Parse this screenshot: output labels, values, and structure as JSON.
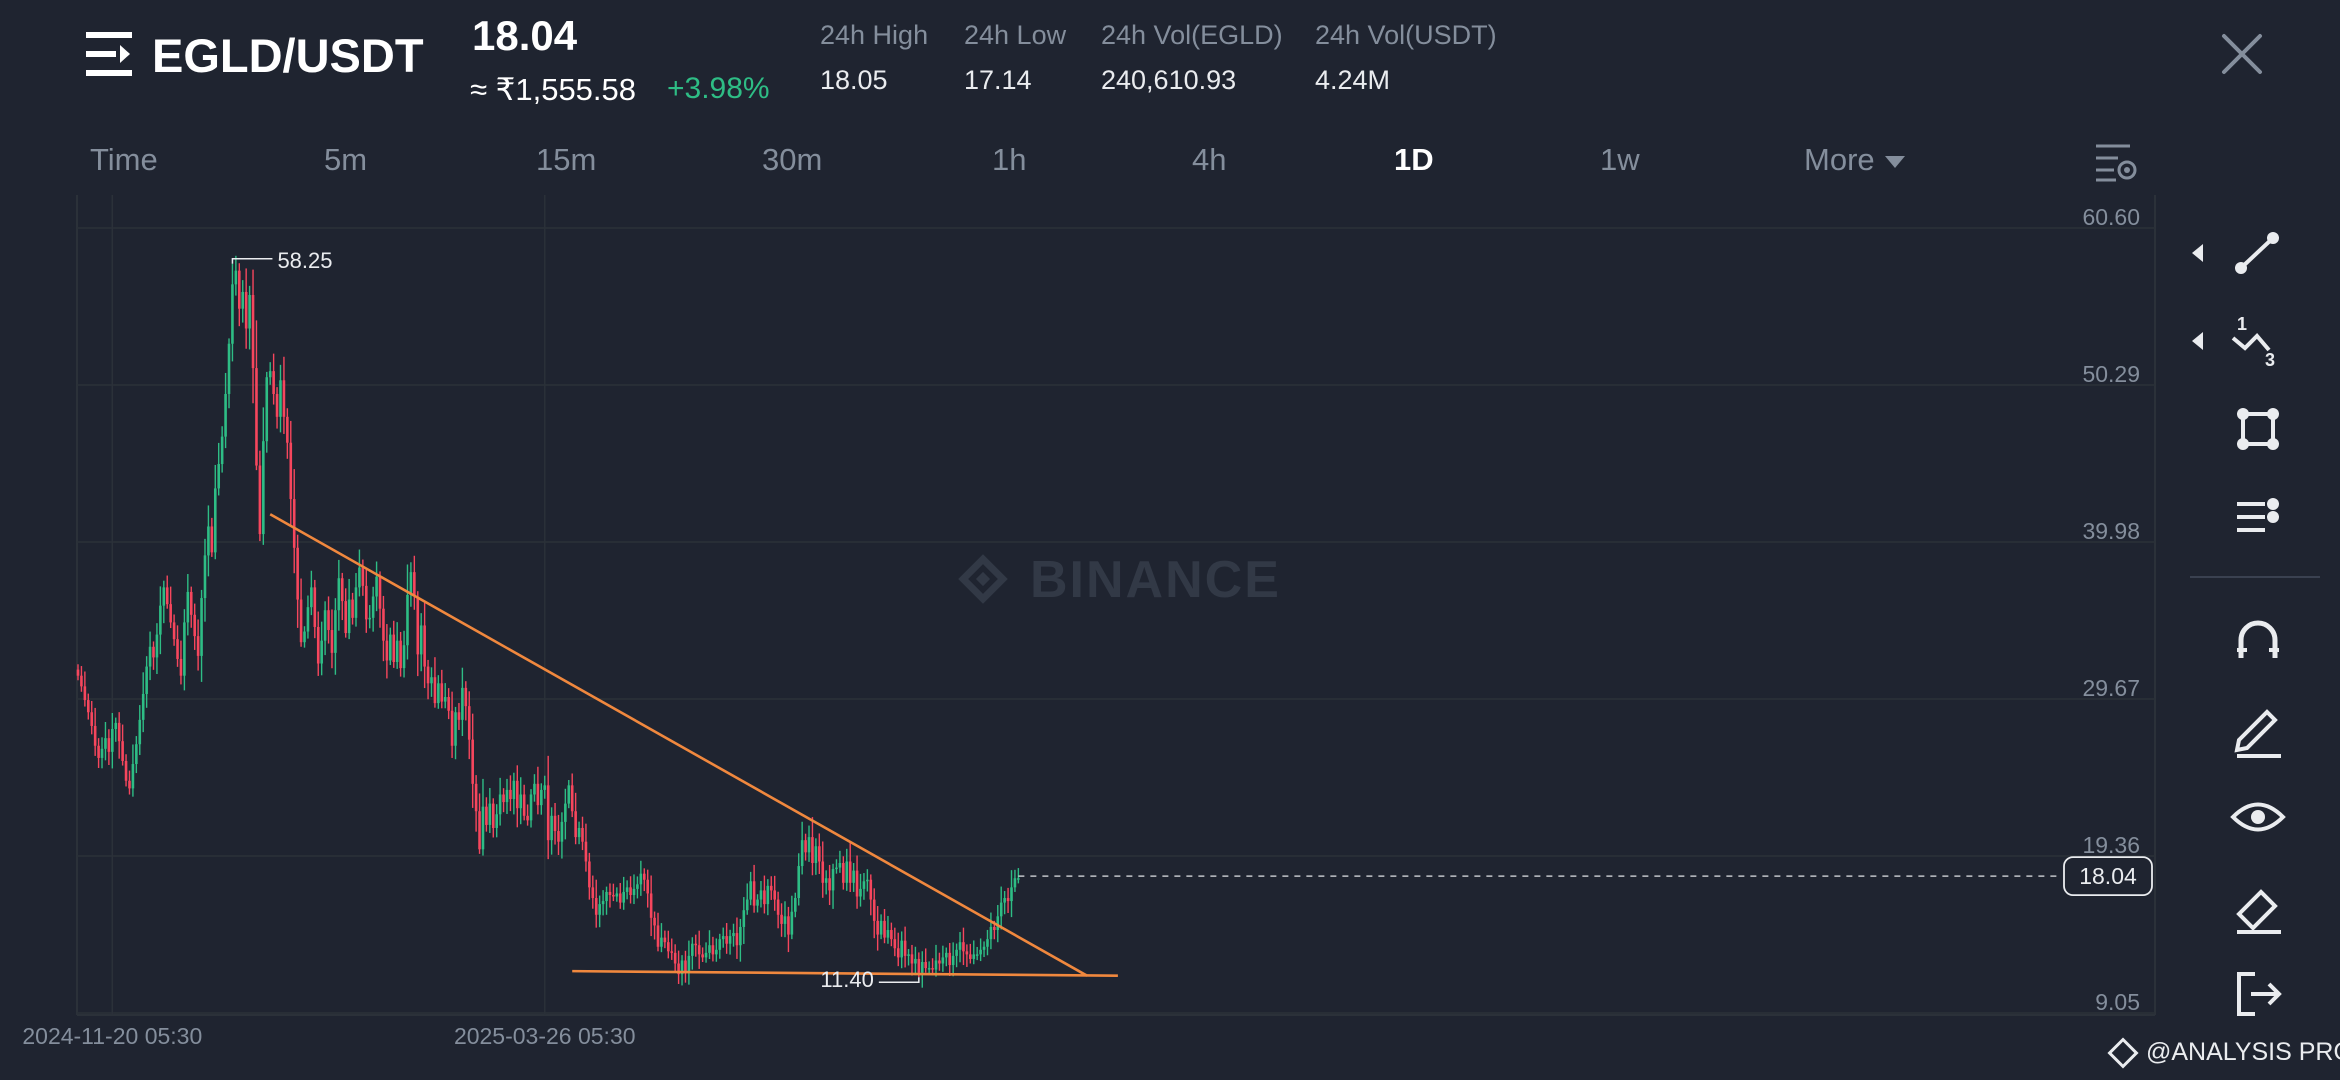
{
  "header": {
    "pair": "EGLD/USDT",
    "last_price": "18.04",
    "fiat_price": "≈ ₹1,555.58",
    "change": "+3.98%",
    "stats": [
      {
        "label": "24h High",
        "value": "18.05"
      },
      {
        "label": "24h Low",
        "value": "17.14"
      },
      {
        "label": "24h Vol(EGLD)",
        "value": "240,610.93"
      },
      {
        "label": "24h Vol(USDT)",
        "value": "4.24M"
      }
    ]
  },
  "timeframes": [
    {
      "label": "Time",
      "active": false
    },
    {
      "label": "5m",
      "active": false
    },
    {
      "label": "15m",
      "active": false
    },
    {
      "label": "30m",
      "active": false
    },
    {
      "label": "1h",
      "active": false
    },
    {
      "label": "4h",
      "active": false
    },
    {
      "label": "1D",
      "active": true
    },
    {
      "label": "1w",
      "active": false
    },
    {
      "label": "More",
      "active": false
    }
  ],
  "chart_data": {
    "type": "candlestick",
    "watermark": "BINANCE",
    "y_ticks": [
      60.6,
      50.29,
      39.98,
      29.67,
      19.36,
      9.05
    ],
    "ylim": [
      9.05,
      60.6
    ],
    "x_ticks": [
      {
        "label": "2024-11-20 05:30",
        "index": 10
      },
      {
        "label": "2025-03-26 05:30",
        "index": 136
      }
    ],
    "current_price": 18.04,
    "high_marker": {
      "label": "58.25",
      "value": 58.25,
      "index": 45
    },
    "low_marker": {
      "label": "11.40",
      "value": 11.4,
      "index": 245
    },
    "closes": [
      31.2,
      30.5,
      29.6,
      28.8,
      27.9,
      26.6,
      25.8,
      26.4,
      27.1,
      26.2,
      27.7,
      28.1,
      26.9,
      25.6,
      24.3,
      23.8,
      25.4,
      26.7,
      28.3,
      30.0,
      31.8,
      33.1,
      32.4,
      33.9,
      35.8,
      37.0,
      35.9,
      34.7,
      33.6,
      32.3,
      31.2,
      34.7,
      36.7,
      35.2,
      33.8,
      32.5,
      36.3,
      39.1,
      41.0,
      39.3,
      43.5,
      45.1,
      46.9,
      49.7,
      53.0,
      56.9,
      57.8,
      55.3,
      56.4,
      54.0,
      56.2,
      51.4,
      45.0,
      40.5,
      46.6,
      50.8,
      51.2,
      49.7,
      48.2,
      50.6,
      48.2,
      46.5,
      42.8,
      39.6,
      36.2,
      33.4,
      34.1,
      35.7,
      37.0,
      34.4,
      32.0,
      33.5,
      35.5,
      34.2,
      32.7,
      35.5,
      37.6,
      36.1,
      34.0,
      36.2,
      35.0,
      37.0,
      38.3,
      37.1,
      34.9,
      35.0,
      36.4,
      37.7,
      35.6,
      33.5,
      32.2,
      33.9,
      32.1,
      33.5,
      31.7,
      33.2,
      36.5,
      38.0,
      36.4,
      32.6,
      34.5,
      31.8,
      30.7,
      31.1,
      29.4,
      30.7,
      29.5,
      29.8,
      28.9,
      26.6,
      28.8,
      28.3,
      30.4,
      29.2,
      27.0,
      24.1,
      22.3,
      19.8,
      22.6,
      21.4,
      22.8,
      21.2,
      22.1,
      23.4,
      22.9,
      23.7,
      23.1,
      24.3,
      22.5,
      23.4,
      22.0,
      21.7,
      23.4,
      24.1,
      22.7,
      23.7,
      24.0,
      20.4,
      22.0,
      21.0,
      20.3,
      21.6,
      22.8,
      24.0,
      22.3,
      20.6,
      21.2,
      20.3,
      19.0,
      17.3,
      16.6,
      15.5,
      16.2,
      16.4,
      17.0,
      16.8,
      16.7,
      16.9,
      16.3,
      17.0,
      17.3,
      16.8,
      17.2,
      17.5,
      18.2,
      17.8,
      16.9,
      15.3,
      14.8,
      13.4,
      14.0,
      13.7,
      13.1,
      13.0,
      12.3,
      11.6,
      12.5,
      11.8,
      12.8,
      13.6,
      13.5,
      12.9,
      12.7,
      13.0,
      13.5,
      12.9,
      13.2,
      13.9,
      14.1,
      13.6,
      14.1,
      14.3,
      13.5,
      14.7,
      15.8,
      16.5,
      17.7,
      16.1,
      16.5,
      17.1,
      16.2,
      17.4,
      17.1,
      16.5,
      15.5,
      14.9,
      15.4,
      14.2,
      15.7,
      16.6,
      18.7,
      20.4,
      19.6,
      20.6,
      18.9,
      20.0,
      19.0,
      17.6,
      17.9,
      17.1,
      18.5,
      18.6,
      18.9,
      17.6,
      19.0,
      17.6,
      18.4,
      16.7,
      17.2,
      17.7,
      17.8,
      16.5,
      15.1,
      14.2,
      15.1,
      14.0,
      14.5,
      13.9,
      13.3,
      12.7,
      13.8,
      12.8,
      12.9,
      12.3,
      12.6,
      11.7,
      12.4,
      12.0,
      12.0,
      11.9,
      12.5,
      12.3,
      12.7,
      13.0,
      12.2,
      12.8,
      13.2,
      13.7,
      13.1,
      12.9,
      12.6,
      12.9,
      12.9,
      13.2,
      13.4,
      13.9,
      14.7,
      14.5,
      15.4,
      16.3,
      16.6,
      16.4,
      17.3,
      17.9,
      17.9
    ]
  },
  "toolbar": {
    "tools": [
      "trend-line",
      "fibonacci",
      "shape",
      "indicators",
      "magnet",
      "brush",
      "visibility",
      "eraser",
      "exit"
    ]
  },
  "branding": {
    "label": "@ANALYSIS PRO"
  }
}
